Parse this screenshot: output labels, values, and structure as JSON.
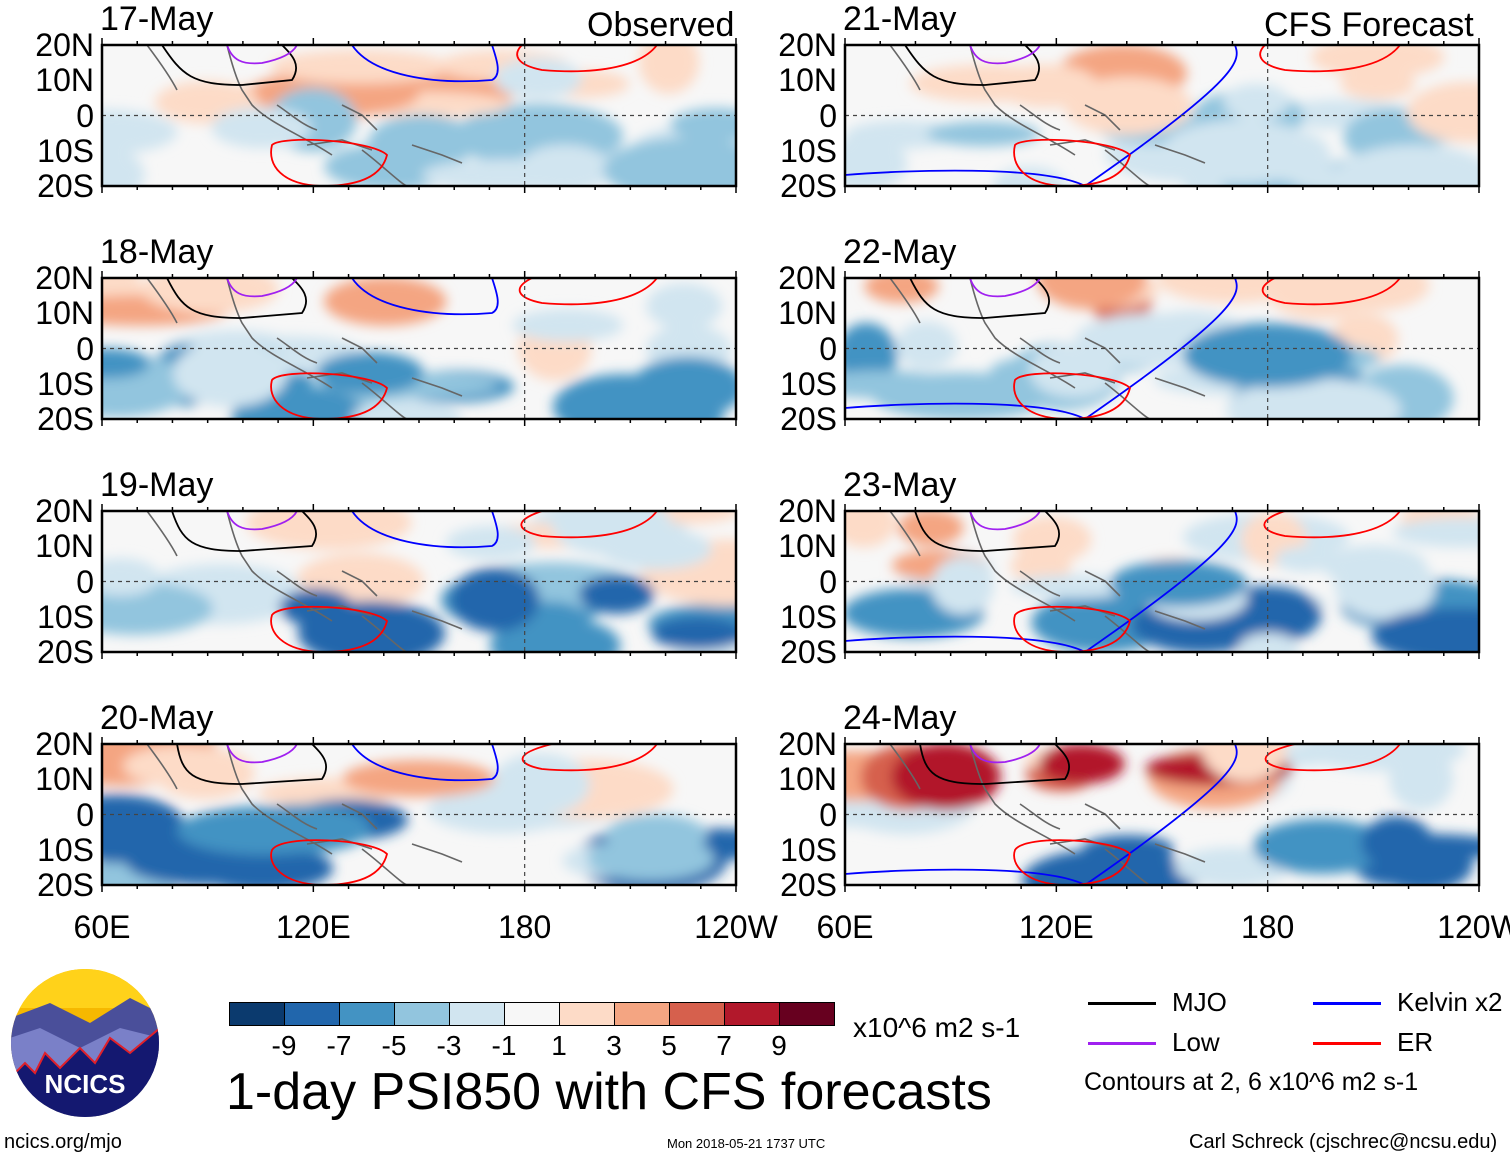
{
  "title": "1-day PSI850 with CFS forecasts",
  "panels_left_label": "Observed",
  "panels_right_label": "CFS Forecast",
  "chart_data": {
    "type": "heatmap",
    "title": "1-day PSI850 with CFS forecasts",
    "variable": "PSI850 anomaly",
    "units": "x10^6 m2 s-1",
    "lat_ticks": [
      "20N",
      "10N",
      "0",
      "10S",
      "20S"
    ],
    "lon_ticks": [
      "60E",
      "120E",
      "180",
      "120W"
    ],
    "lat_range": [
      -20,
      20
    ],
    "lon_range": [
      60,
      240
    ],
    "observed_dates": [
      "17-May",
      "18-May",
      "19-May",
      "20-May"
    ],
    "forecast_dates": [
      "21-May",
      "22-May",
      "23-May",
      "24-May"
    ],
    "colorbar": {
      "ticks": [
        "-9",
        "-7",
        "-5",
        "-3",
        "-1",
        "1",
        "3",
        "5",
        "7",
        "9"
      ],
      "colors": [
        "#0b3a6e",
        "#2166ac",
        "#4393c3",
        "#92c5de",
        "#d1e5f0",
        "#f7f7f7",
        "#fddbc7",
        "#f4a582",
        "#d6604d",
        "#b2182b",
        "#67001f"
      ]
    },
    "legend": [
      {
        "name": "MJO",
        "color": "#000000"
      },
      {
        "name": "Kelvin x2",
        "color": "#0000ff"
      },
      {
        "name": "Low",
        "color": "#a020f0"
      },
      {
        "name": "ER",
        "color": "#ff0000"
      }
    ],
    "contour_note": "Contours at 2, 6 x10^6 m2 s-1"
  },
  "footer": {
    "logo_text": "NCICS",
    "url": "ncics.org/mjo",
    "timestamp": "Mon 2018-05-21 1737 UTC",
    "author": "Carl Schreck (cjschrec@ncsu.edu)"
  }
}
